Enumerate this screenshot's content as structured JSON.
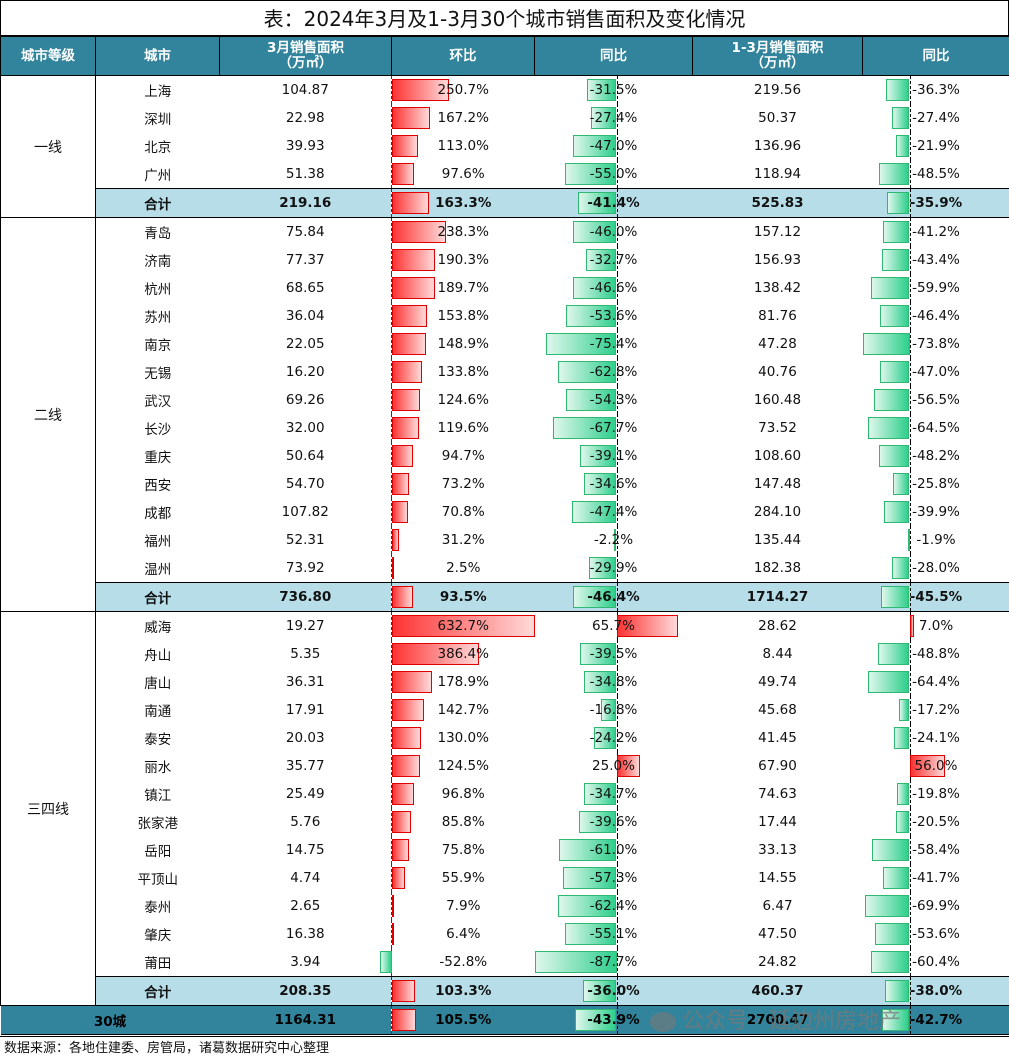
{
  "title": "表：2024年3月及1-3月30个城市销售面积及变化情况",
  "headers": [
    "城市等级",
    "城市",
    "3月销售面积\n（万㎡）",
    "环比",
    "同比",
    "1-3月销售面积\n（万㎡）",
    "同比"
  ],
  "header_lines": {
    "h3a": "3月销售面积",
    "h3b": "（万㎡）",
    "h6a": "1-3月销售面积",
    "h6b": "（万㎡）"
  },
  "colors": {
    "header": "#31849B",
    "subtotal": "#B7DEE8",
    "positive_bar": "#FF3333",
    "negative_bar": "#2ECF8C"
  },
  "tiers": [
    {
      "name": "一线",
      "rows": [
        {
          "city": "上海",
          "m3": "104.87",
          "mom": "250.7%",
          "yoy": "-31.5%",
          "q1": "219.56",
          "q1yoy": "-36.3%"
        },
        {
          "city": "深圳",
          "m3": "22.98",
          "mom": "167.2%",
          "yoy": "-27.4%",
          "q1": "50.37",
          "q1yoy": "-27.4%"
        },
        {
          "city": "北京",
          "m3": "39.93",
          "mom": "113.0%",
          "yoy": "-47.0%",
          "q1": "136.96",
          "q1yoy": "-21.9%"
        },
        {
          "city": "广州",
          "m3": "51.38",
          "mom": "97.6%",
          "yoy": "-55.0%",
          "q1": "118.94",
          "q1yoy": "-48.5%"
        }
      ],
      "total": {
        "city": "合计",
        "m3": "219.16",
        "mom": "163.3%",
        "yoy": "-41.4%",
        "q1": "525.83",
        "q1yoy": "-35.9%"
      }
    },
    {
      "name": "二线",
      "rows": [
        {
          "city": "青岛",
          "m3": "75.84",
          "mom": "238.3%",
          "yoy": "-46.0%",
          "q1": "157.12",
          "q1yoy": "-41.2%"
        },
        {
          "city": "济南",
          "m3": "77.37",
          "mom": "190.3%",
          "yoy": "-32.7%",
          "q1": "156.93",
          "q1yoy": "-43.4%"
        },
        {
          "city": "杭州",
          "m3": "68.65",
          "mom": "189.7%",
          "yoy": "-46.6%",
          "q1": "138.42",
          "q1yoy": "-59.9%"
        },
        {
          "city": "苏州",
          "m3": "36.04",
          "mom": "153.8%",
          "yoy": "-53.6%",
          "q1": "81.76",
          "q1yoy": "-46.4%"
        },
        {
          "city": "南京",
          "m3": "22.05",
          "mom": "148.9%",
          "yoy": "-75.4%",
          "q1": "47.28",
          "q1yoy": "-73.8%"
        },
        {
          "city": "无锡",
          "m3": "16.20",
          "mom": "133.8%",
          "yoy": "-62.8%",
          "q1": "40.76",
          "q1yoy": "-47.0%"
        },
        {
          "city": "武汉",
          "m3": "69.26",
          "mom": "124.6%",
          "yoy": "-54.3%",
          "q1": "160.48",
          "q1yoy": "-56.5%"
        },
        {
          "city": "长沙",
          "m3": "32.00",
          "mom": "119.6%",
          "yoy": "-67.7%",
          "q1": "73.52",
          "q1yoy": "-64.5%"
        },
        {
          "city": "重庆",
          "m3": "50.64",
          "mom": "94.7%",
          "yoy": "-39.1%",
          "q1": "108.60",
          "q1yoy": "-48.2%"
        },
        {
          "city": "西安",
          "m3": "54.70",
          "mom": "73.2%",
          "yoy": "-34.6%",
          "q1": "147.48",
          "q1yoy": "-25.8%"
        },
        {
          "city": "成都",
          "m3": "107.82",
          "mom": "70.8%",
          "yoy": "-47.4%",
          "q1": "284.10",
          "q1yoy": "-39.9%"
        },
        {
          "city": "福州",
          "m3": "52.31",
          "mom": "31.2%",
          "yoy": "-2.2%",
          "q1": "135.44",
          "q1yoy": "-1.9%"
        },
        {
          "city": "温州",
          "m3": "73.92",
          "mom": "2.5%",
          "yoy": "-29.9%",
          "q1": "182.38",
          "q1yoy": "-28.0%"
        }
      ],
      "total": {
        "city": "合计",
        "m3": "736.80",
        "mom": "93.5%",
        "yoy": "-46.4%",
        "q1": "1714.27",
        "q1yoy": "-45.5%"
      }
    },
    {
      "name": "三四线",
      "rows": [
        {
          "city": "威海",
          "m3": "19.27",
          "mom": "632.7%",
          "yoy": "65.7%",
          "q1": "28.62",
          "q1yoy": "7.0%"
        },
        {
          "city": "舟山",
          "m3": "5.35",
          "mom": "386.4%",
          "yoy": "-39.5%",
          "q1": "8.44",
          "q1yoy": "-48.8%"
        },
        {
          "city": "唐山",
          "m3": "36.31",
          "mom": "178.9%",
          "yoy": "-34.8%",
          "q1": "49.74",
          "q1yoy": "-64.4%"
        },
        {
          "city": "南通",
          "m3": "17.91",
          "mom": "142.7%",
          "yoy": "-16.8%",
          "q1": "45.68",
          "q1yoy": "-17.2%"
        },
        {
          "city": "泰安",
          "m3": "20.03",
          "mom": "130.0%",
          "yoy": "-24.2%",
          "q1": "41.45",
          "q1yoy": "-24.1%"
        },
        {
          "city": "丽水",
          "m3": "35.77",
          "mom": "124.5%",
          "yoy": "25.0%",
          "q1": "67.90",
          "q1yoy": "56.0%"
        },
        {
          "city": "镇江",
          "m3": "25.49",
          "mom": "96.8%",
          "yoy": "-34.7%",
          "q1": "74.63",
          "q1yoy": "-19.8%"
        },
        {
          "city": "张家港",
          "m3": "5.76",
          "mom": "85.8%",
          "yoy": "-39.6%",
          "q1": "17.44",
          "q1yoy": "-20.5%"
        },
        {
          "city": "岳阳",
          "m3": "14.75",
          "mom": "75.8%",
          "yoy": "-61.0%",
          "q1": "33.13",
          "q1yoy": "-58.4%"
        },
        {
          "city": "平顶山",
          "m3": "4.74",
          "mom": "55.9%",
          "yoy": "-57.3%",
          "q1": "14.55",
          "q1yoy": "-41.7%"
        },
        {
          "city": "泰州",
          "m3": "2.65",
          "mom": "7.9%",
          "yoy": "-62.4%",
          "q1": "6.47",
          "q1yoy": "-69.9%"
        },
        {
          "city": "肇庆",
          "m3": "16.38",
          "mom": "6.4%",
          "yoy": "-55.1%",
          "q1": "47.50",
          "q1yoy": "-53.6%"
        },
        {
          "city": "莆田",
          "m3": "3.94",
          "mom": "-52.8%",
          "yoy": "-87.7%",
          "q1": "24.82",
          "q1yoy": "-60.4%"
        }
      ],
      "total": {
        "city": "合计",
        "m3": "208.35",
        "mom": "103.3%",
        "yoy": "-36.0%",
        "q1": "460.37",
        "q1yoy": "-38.0%"
      }
    }
  ],
  "grand": {
    "label": "30城",
    "m3": "1164.31",
    "mom": "105.5%",
    "yoy": "-43.9%",
    "q1": "2700.47",
    "q1yoy": "-42.7%"
  },
  "source": "数据来源：各地住建委、房管局，诸葛数据研究中心整理",
  "watermark": "公众号 · 延边州房地产"
}
